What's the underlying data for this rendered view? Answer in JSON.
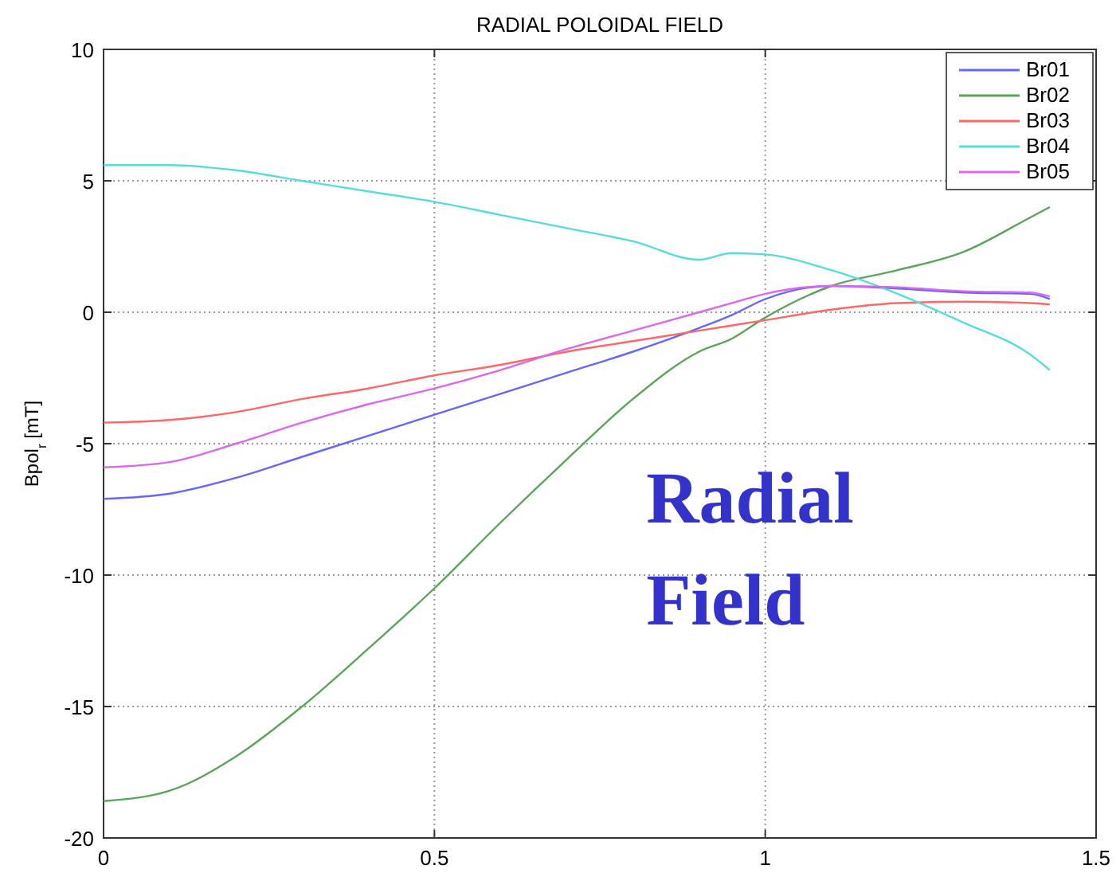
{
  "chart_data": {
    "type": "line",
    "title": "RADIAL POLOIDAL FIELD",
    "ylabel": "Bpol$_{r}$ [mT]",
    "x": [
      0,
      0.1,
      0.2,
      0.3,
      0.4,
      0.5,
      0.6,
      0.7,
      0.8,
      0.9,
      0.95,
      1.0,
      1.1,
      1.2,
      1.3,
      1.4,
      1.43
    ],
    "series": [
      {
        "name": "Br01",
        "color": "#6666ff",
        "values": [
          -7.1,
          -6.9,
          -6.3,
          -5.5,
          -4.7,
          -3.9,
          -3.1,
          -2.3,
          -1.5,
          -0.6,
          -0.1,
          0.5,
          1.0,
          0.9,
          0.75,
          0.7,
          0.5
        ]
      },
      {
        "name": "Br02",
        "color": "#5aa55a",
        "values": [
          -18.6,
          -18.2,
          -16.9,
          -15.0,
          -12.8,
          -10.5,
          -8.0,
          -5.6,
          -3.3,
          -1.5,
          -1.0,
          -0.2,
          1.0,
          1.6,
          2.3,
          3.6,
          4.0
        ]
      },
      {
        "name": "Br03",
        "color": "#ff6666",
        "values": [
          -4.2,
          -4.1,
          -3.8,
          -3.3,
          -2.9,
          -2.4,
          -2.0,
          -1.5,
          -1.1,
          -0.7,
          -0.5,
          -0.3,
          0.1,
          0.35,
          0.4,
          0.35,
          0.3
        ]
      },
      {
        "name": "Br04",
        "color": "#55dddd",
        "values": [
          5.6,
          5.6,
          5.4,
          5.0,
          4.6,
          4.2,
          3.7,
          3.2,
          2.7,
          2.0,
          2.25,
          2.2,
          1.6,
          0.7,
          -0.4,
          -1.6,
          -2.2
        ]
      },
      {
        "name": "Br05",
        "color": "#dd66ee",
        "values": [
          -5.9,
          -5.7,
          -5.0,
          -4.2,
          -3.5,
          -2.9,
          -2.2,
          -1.4,
          -0.7,
          0.0,
          0.35,
          0.7,
          1.0,
          0.95,
          0.8,
          0.75,
          0.6
        ]
      }
    ],
    "xlim": [
      0,
      1.5
    ],
    "xticks": [
      0,
      0.5,
      1,
      1.5
    ],
    "ylim": [
      -20,
      10
    ],
    "yticks": [
      -20,
      -15,
      -10,
      -5,
      0,
      5,
      10
    ],
    "grid": true,
    "legend": "top right",
    "line_style": "solid",
    "annotations": [
      "Radial\nField"
    ]
  }
}
